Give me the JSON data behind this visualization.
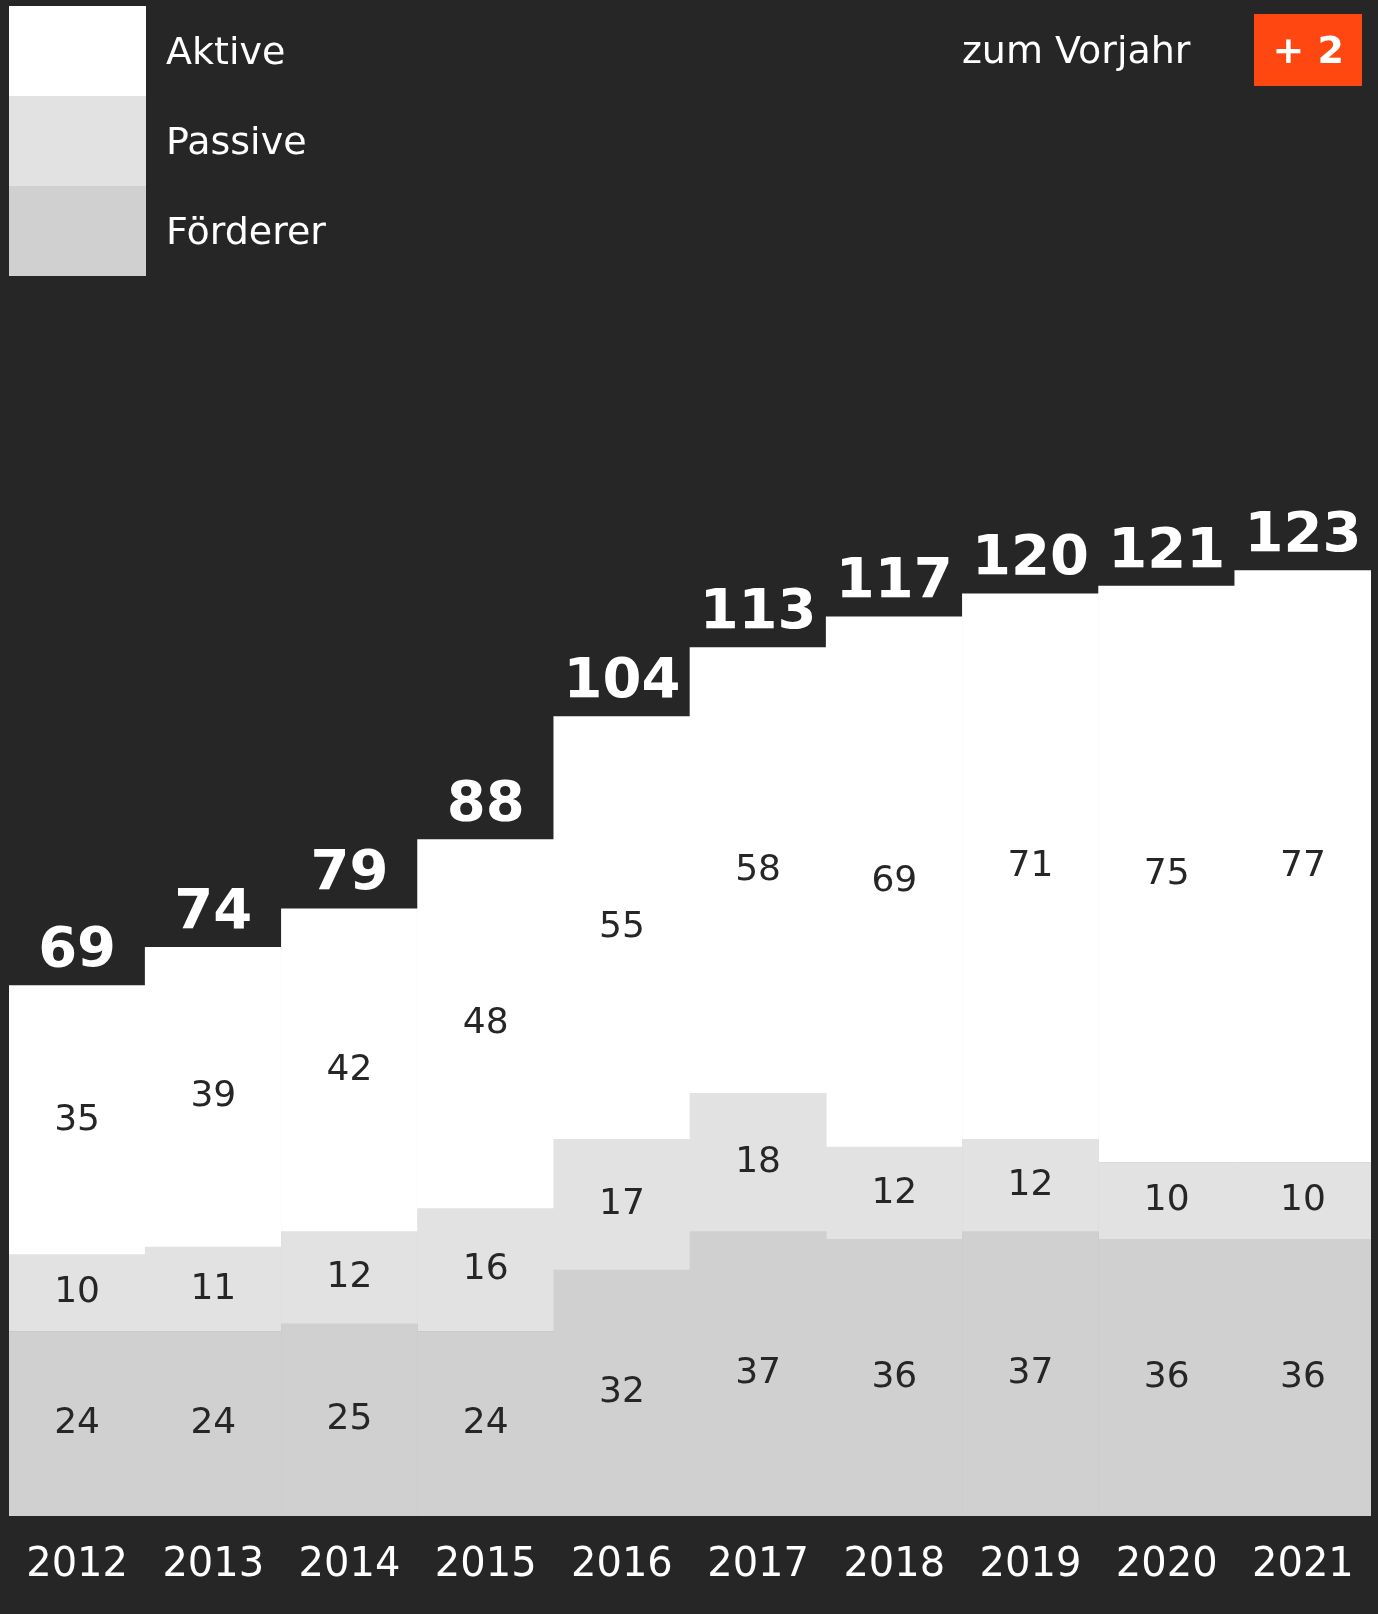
{
  "chart_data": {
    "type": "bar",
    "stacked": true,
    "categories": [
      "2012",
      "2013",
      "2014",
      "2015",
      "2016",
      "2017",
      "2018",
      "2019",
      "2020",
      "2021"
    ],
    "series": [
      {
        "name": "Förderer",
        "color": "#cfd0cf",
        "values": [
          24,
          24,
          25,
          24,
          32,
          37,
          36,
          37,
          36,
          36
        ]
      },
      {
        "name": "Passive",
        "color": "#e2e2e2",
        "values": [
          10,
          11,
          12,
          16,
          17,
          18,
          12,
          12,
          10,
          10
        ]
      },
      {
        "name": "Aktive",
        "color": "#ffffff",
        "values": [
          35,
          39,
          42,
          48,
          55,
          58,
          69,
          71,
          75,
          77
        ]
      }
    ],
    "data_labels": true,
    "totals": [
      "69",
      "74",
      "79",
      "88",
      "104",
      "113",
      "117",
      "120",
      "121",
      "123"
    ],
    "legend": "top left",
    "annotations": [
      "zum Vorjahr",
      "+ 2"
    ]
  }
}
